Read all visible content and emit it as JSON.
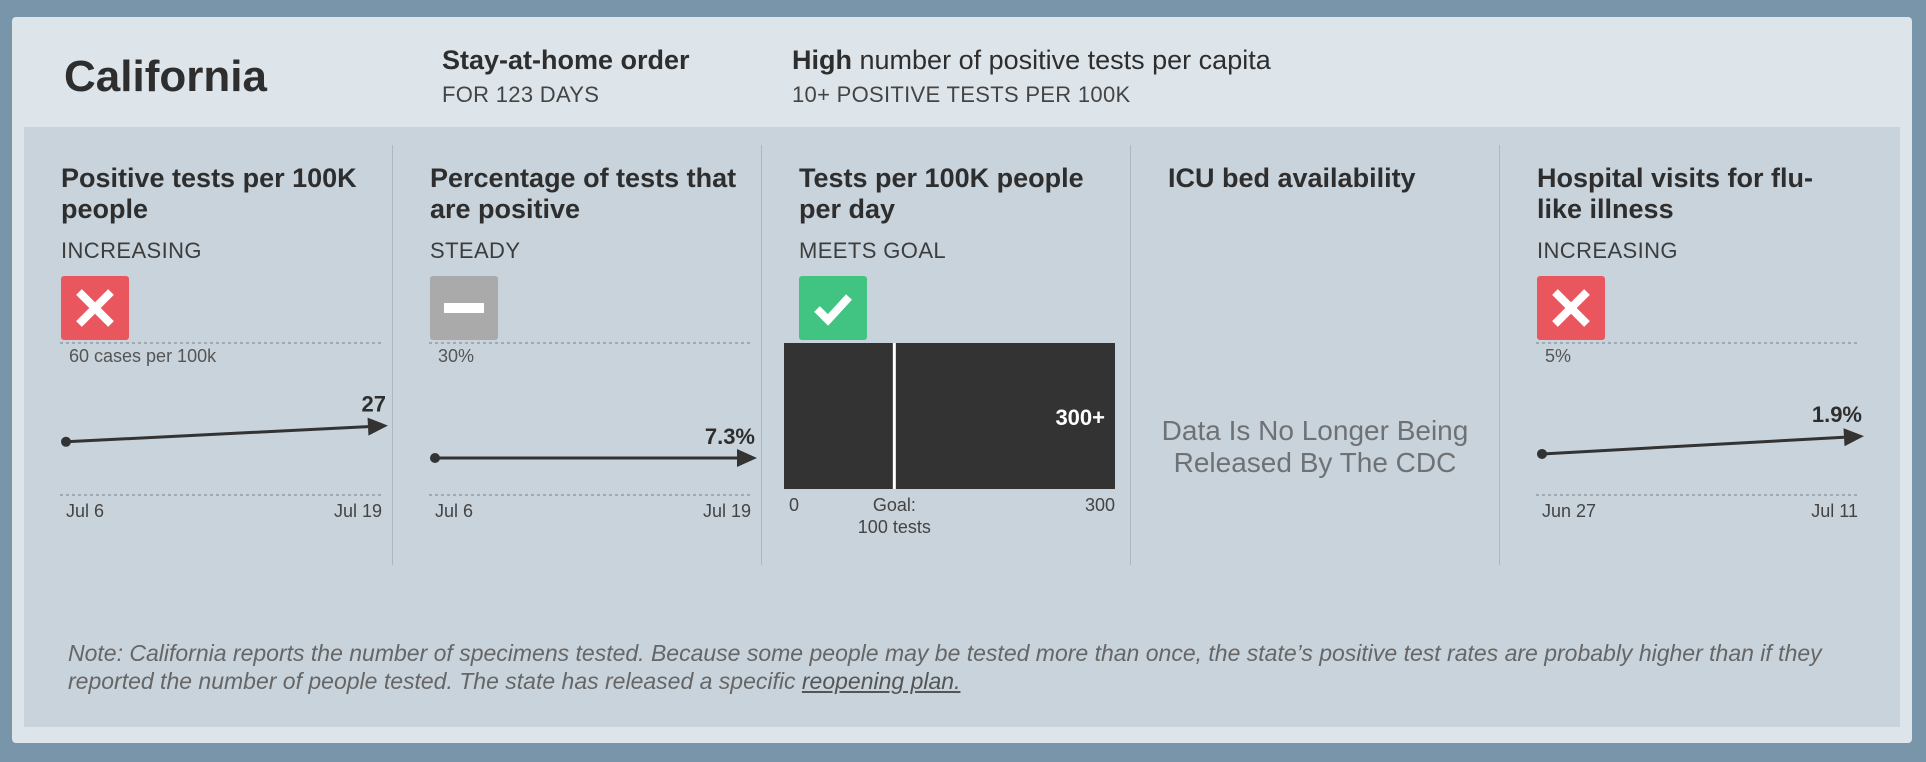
{
  "header": {
    "state": "California",
    "order_title": "Stay-at-home order",
    "order_duration": "FOR 123 DAYS",
    "risk_level": "High",
    "risk_text": "number of positive tests per capita",
    "risk_sub": "10+ POSITIVE TESTS PER 100K"
  },
  "columns": [
    {
      "title": "Positive tests per 100K people",
      "status": "INCREASING",
      "badge": "x-icon",
      "badge_color": "#e9565e"
    },
    {
      "title": "Percentage of tests that are positive",
      "status": "STEADY",
      "badge": "minus-icon",
      "badge_color": "#aaaaaa"
    },
    {
      "title": "Tests per 100K people per day",
      "status": "MEETS GOAL",
      "badge": "check-icon",
      "badge_color": "#41c382"
    },
    {
      "title": "ICU bed availability",
      "status": "",
      "message": "Data Is No Longer Being Released By The CDC"
    },
    {
      "title": "Hospital visits for flu-like illness",
      "status": "INCREASING",
      "badge": "x-icon",
      "badge_color": "#e9565e"
    }
  ],
  "chart_data": [
    {
      "type": "line",
      "title": "Positive tests per 100K people",
      "max_label": "60 cases per 100k",
      "ylim": [
        0,
        60
      ],
      "x": [
        "Jul 6",
        "Jul 19"
      ],
      "y": [
        21,
        27
      ],
      "end_label": "27"
    },
    {
      "type": "line",
      "title": "Percentage of tests that are positive",
      "max_label": "30%",
      "ylim": [
        0,
        30
      ],
      "x": [
        "Jul 6",
        "Jul 19"
      ],
      "y": [
        7.3,
        7.3
      ],
      "end_label": "7.3%"
    },
    {
      "type": "bar",
      "title": "Tests per 100K people per day",
      "orientation": "horizontal",
      "xlim": [
        0,
        300
      ],
      "value": 300,
      "value_label": "300+",
      "goal": 100,
      "goal_label_1": "Goal:",
      "goal_label_2": "100 tests",
      "tick_min": "0",
      "tick_max": "300"
    },
    {
      "type": "line",
      "title": "Hospital visits for flu-like illness",
      "max_label": "5%",
      "ylim": [
        0,
        5
      ],
      "x": [
        "Jun 27",
        "Jul 11"
      ],
      "y": [
        1.35,
        1.9
      ],
      "end_label": "1.9%"
    }
  ],
  "note": {
    "text": "Note: California reports the number of specimens tested. Because some people may be tested more than once, the state’s positive test rates are probably higher than if they reported the number of people tested. The state has released a specific ",
    "link": "reopening plan."
  },
  "colors": {
    "bad": "#e9565e",
    "neutral": "#aaaaaa",
    "good": "#41c382",
    "bar": "#333333"
  }
}
